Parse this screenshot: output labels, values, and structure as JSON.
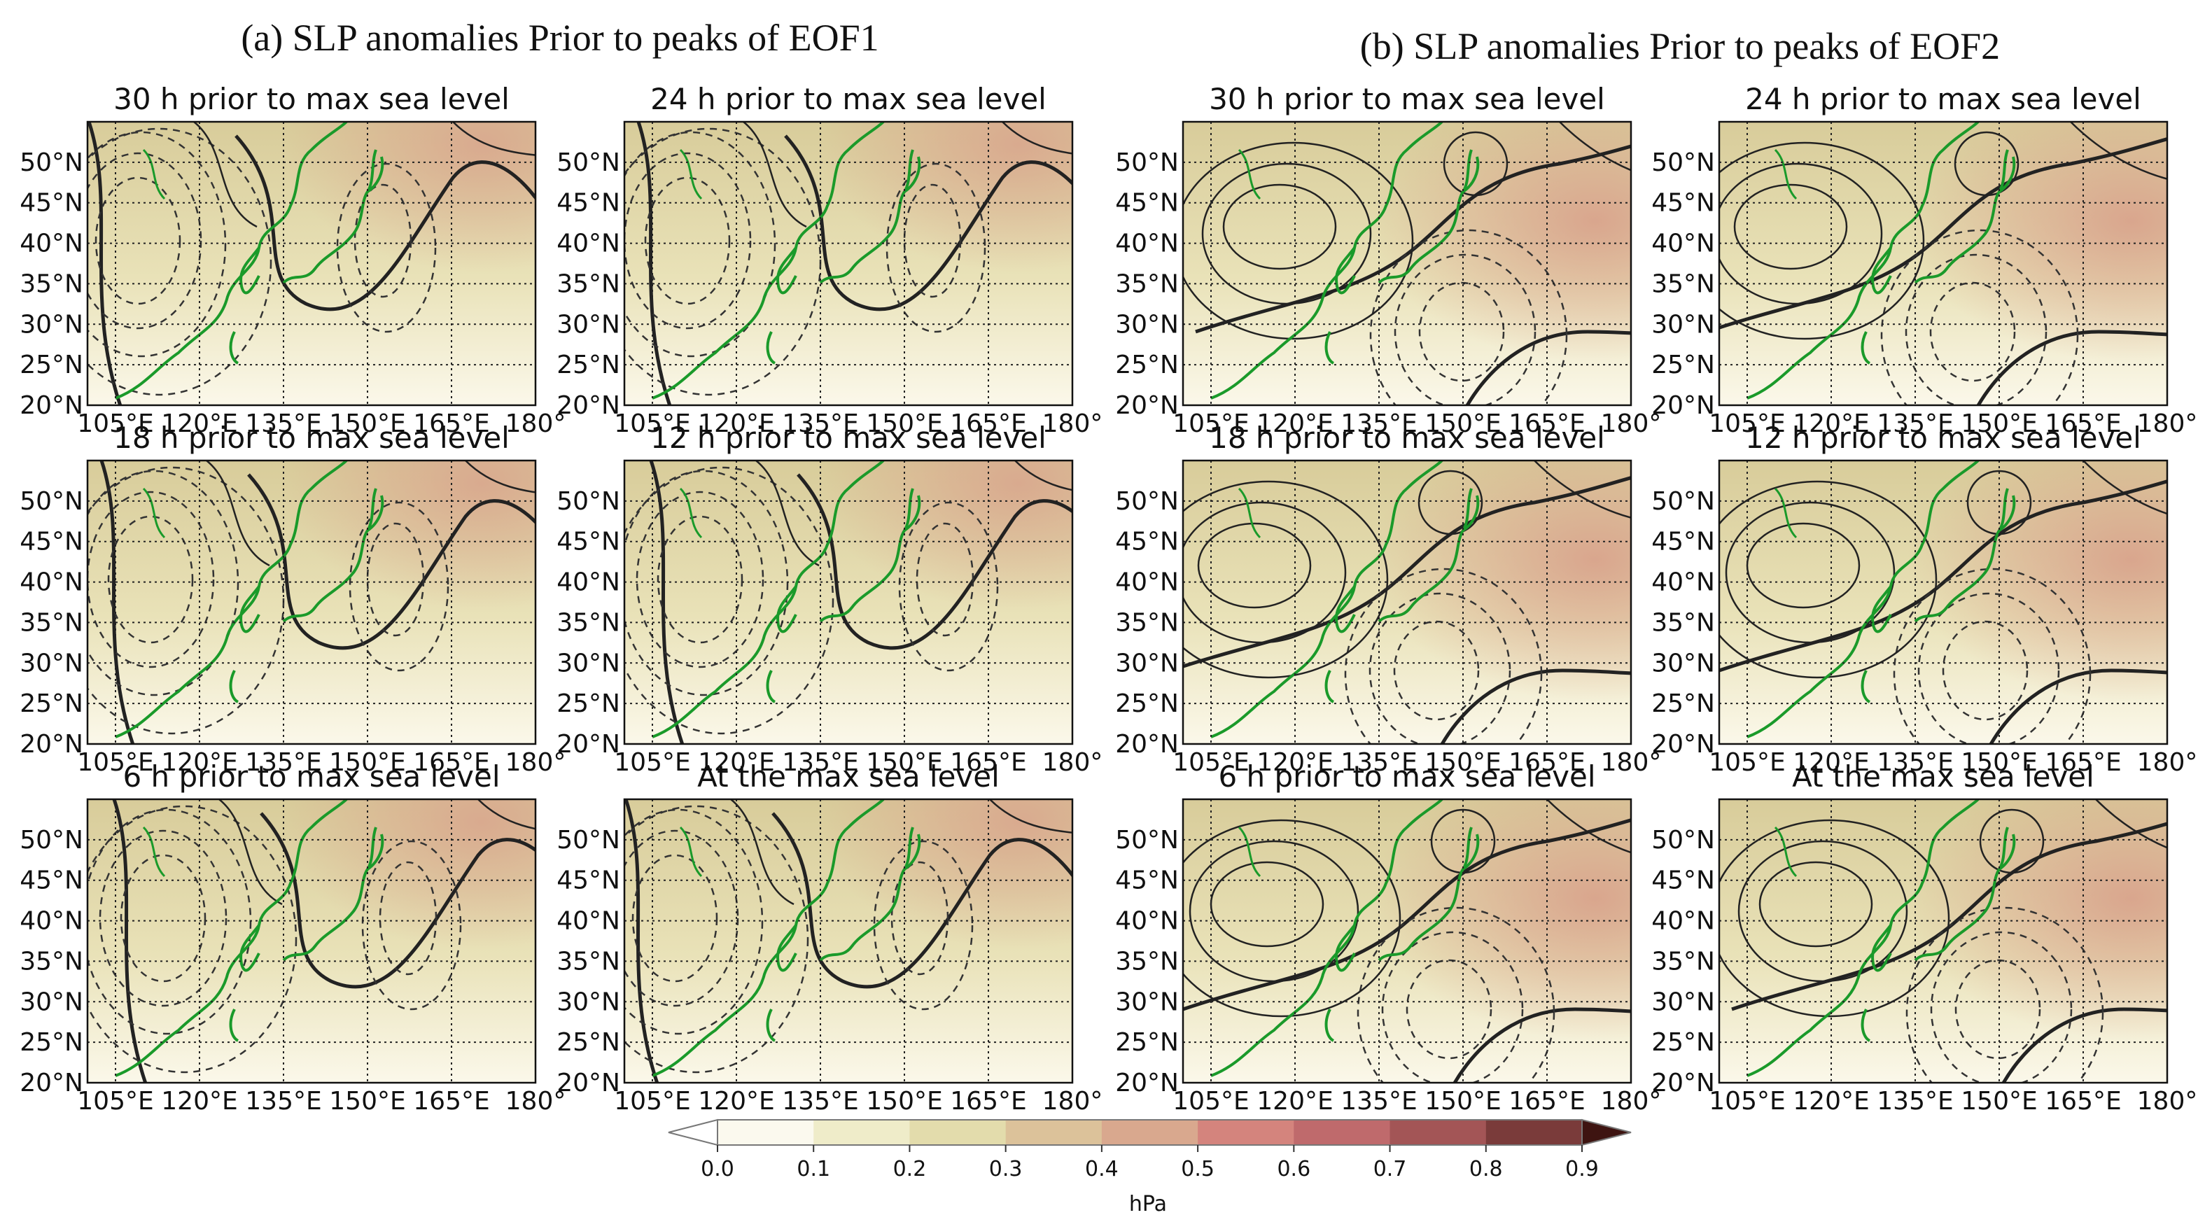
{
  "sections": [
    {
      "id": "a",
      "title": "(a) SLP anomalies Prior to peaks of EOF1"
    },
    {
      "id": "b",
      "title": "(b) SLP anomalies Prior to peaks of EOF2"
    }
  ],
  "panels": [
    {
      "section": "a",
      "title": "30 h prior to max sea level"
    },
    {
      "section": "a",
      "title": "24 h prior to max sea level"
    },
    {
      "section": "b",
      "title": "30 h prior to max sea level"
    },
    {
      "section": "b",
      "title": "24 h prior to max sea level"
    },
    {
      "section": "a",
      "title": "18 h prior to max sea level"
    },
    {
      "section": "a",
      "title": "12 h prior to max sea level"
    },
    {
      "section": "b",
      "title": "18 h prior to max sea level"
    },
    {
      "section": "b",
      "title": "12 h prior to max sea level"
    },
    {
      "section": "a",
      "title": "6 h prior to max sea level"
    },
    {
      "section": "a",
      "title": "At the max sea level"
    },
    {
      "section": "b",
      "title": "6 h prior to max sea level"
    },
    {
      "section": "b",
      "title": "At the max sea level"
    }
  ],
  "lat_ticks": [
    "50°N",
    "45°N",
    "40°N",
    "35°N",
    "30°N",
    "25°N",
    "20°N"
  ],
  "lat_values": [
    50,
    45,
    40,
    35,
    30,
    25,
    20
  ],
  "lon_ticks": [
    "105°E",
    "120°E",
    "135°E",
    "150°E",
    "165°E",
    "180°"
  ],
  "lon_values": [
    105,
    120,
    135,
    150,
    165,
    180
  ],
  "lon_range": [
    100,
    180
  ],
  "lat_range": [
    20,
    55
  ],
  "colorbar": {
    "label": "hPa",
    "ticks": [
      "0.0",
      "0.1",
      "0.2",
      "0.3",
      "0.4",
      "0.5",
      "0.6",
      "0.7",
      "0.8",
      "0.9"
    ],
    "levels": [
      0.0,
      0.1,
      0.2,
      0.3,
      0.4,
      0.5,
      0.6,
      0.7,
      0.8,
      0.9
    ],
    "colors": [
      "#fbf9ee",
      "#efecc9",
      "#e3dcac",
      "#dcc29a",
      "#d9a88e",
      "#d4847d",
      "#bf6a6c",
      "#a35556",
      "#7a3b3a"
    ],
    "under_color": "#ffffff",
    "over_color": "#3e1411"
  },
  "colors": {
    "coast": "#1a9a2a",
    "contour": "#222222"
  }
}
